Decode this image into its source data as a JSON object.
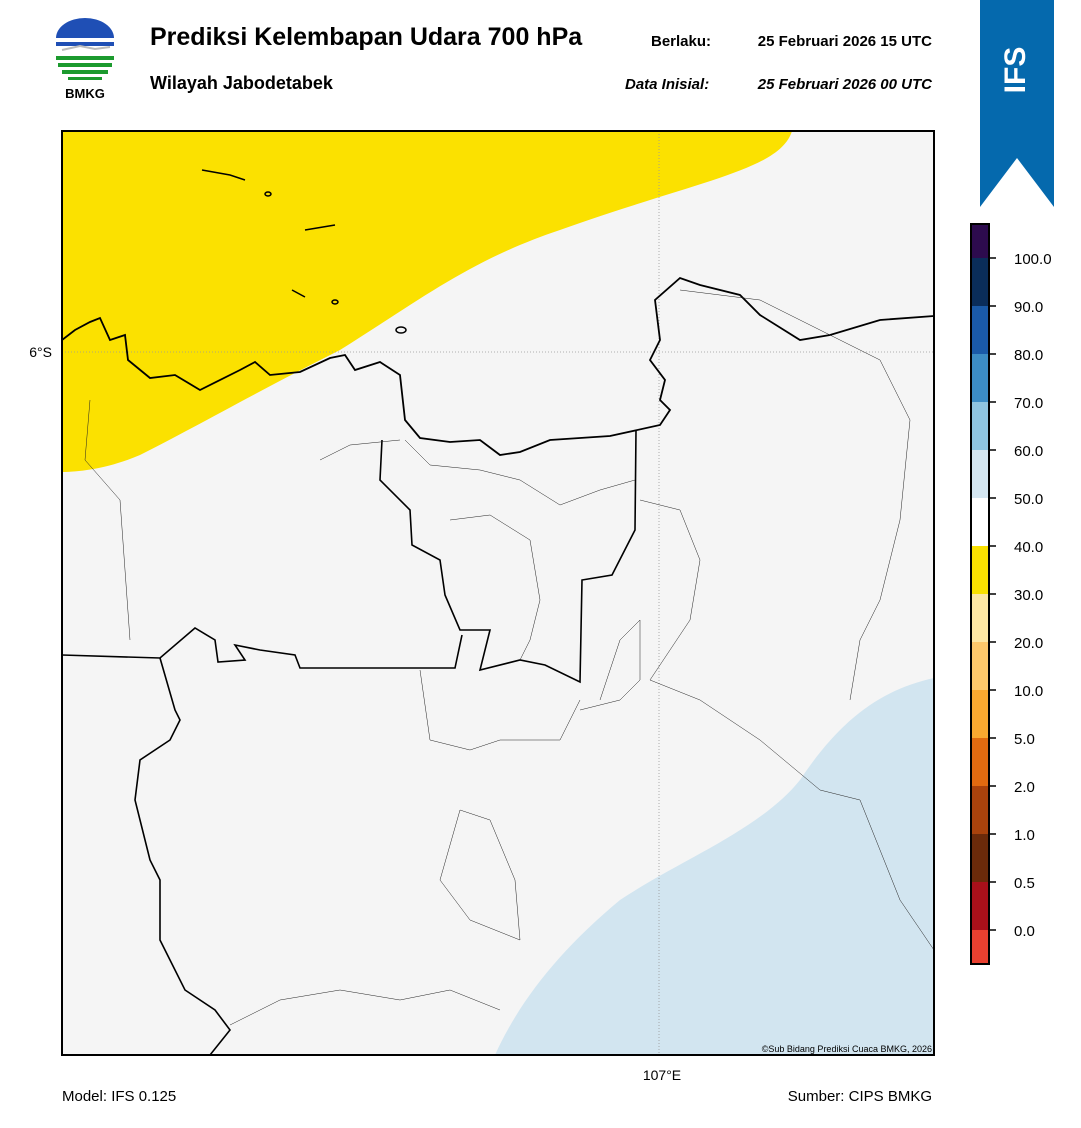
{
  "header": {
    "title": "Prediksi Kelembapan Udara 700 hPa",
    "subtitle": "Wilayah Jabodetabek",
    "logo_text": "BMKG",
    "valid_label": "Berlaku:",
    "valid_time": "25 Februari 2026 15 UTC",
    "init_label": "Data Inisial:",
    "init_time": "25 Februari 2026 00 UTC",
    "model_badge": "IFS"
  },
  "map": {
    "lat_label": "6°S",
    "lon_label": "107°E",
    "credit": "©Sub Bidang Prediksi Cuaca BMKG, 2026"
  },
  "colorbar": {
    "labels": [
      "100.0",
      "90.0",
      "80.0",
      "70.0",
      "60.0",
      "50.0",
      "40.0",
      "30.0",
      "20.0",
      "10.0",
      "5.0",
      "2.0",
      "1.0",
      "0.5",
      "0.0"
    ]
  },
  "footer": {
    "model": "Model: IFS 0.125",
    "source": "Sumber: CIPS BMKG"
  }
}
